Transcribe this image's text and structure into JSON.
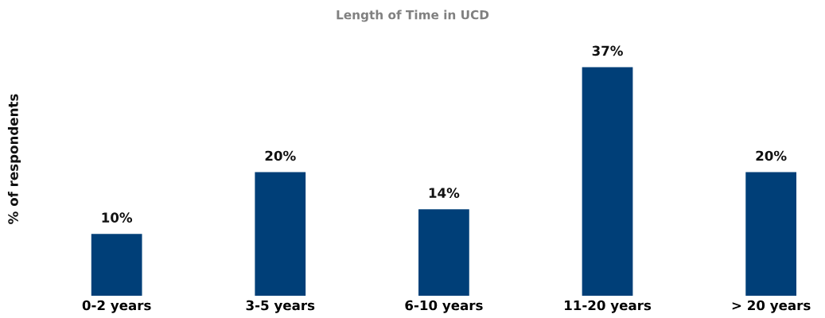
{
  "chart_data": {
    "type": "bar",
    "title": "Length of Time in UCD",
    "ylabel": "% of respondents",
    "categories": [
      "0-2 years",
      "3-5 years",
      "6-10 years",
      "11-20 years",
      "> 20 years"
    ],
    "values": [
      10,
      20,
      14,
      37,
      20
    ],
    "value_labels": [
      "10%",
      "20%",
      "14%",
      "37%",
      "20%"
    ],
    "color": "#003f78",
    "grid": false,
    "legend": false
  }
}
